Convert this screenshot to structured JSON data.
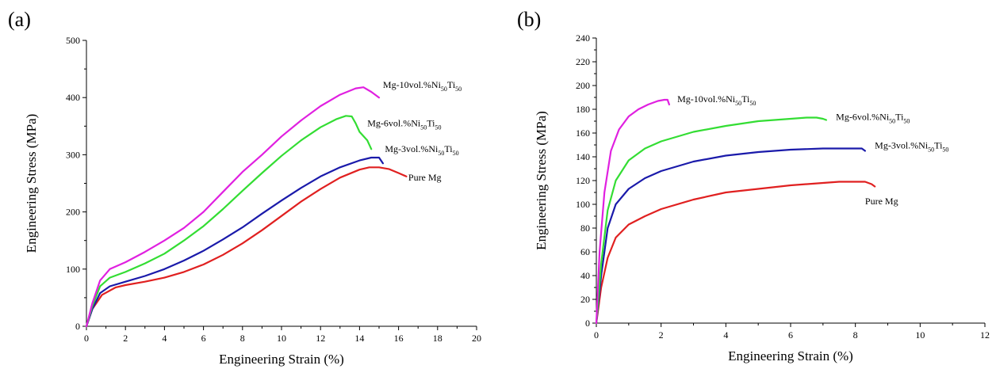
{
  "chart_data": [
    {
      "type": "line",
      "panel_label": "(a)",
      "xlabel": "Engineering Strain (%)",
      "ylabel": "Engineering Stress (MPa)",
      "xlim": [
        0,
        20
      ],
      "ylim": [
        0,
        500
      ],
      "xticks": [
        0,
        2,
        4,
        6,
        8,
        10,
        12,
        14,
        16,
        18,
        20
      ],
      "yticks": [
        0,
        100,
        200,
        300,
        400,
        500
      ],
      "series": [
        {
          "name": "Pure Mg",
          "label_main": "Pure Mg",
          "label_sub": "",
          "color": "#e02020",
          "x": [
            0,
            0.3,
            0.8,
            1.5,
            2,
            3,
            4,
            5,
            6,
            7,
            8,
            9,
            10,
            11,
            12,
            13,
            14,
            14.5,
            15,
            15.5,
            16,
            16.4
          ],
          "y": [
            0,
            30,
            55,
            68,
            72,
            78,
            85,
            95,
            108,
            125,
            145,
            168,
            193,
            218,
            240,
            260,
            274,
            278,
            278,
            275,
            268,
            262
          ]
        },
        {
          "name": "Mg-3vol.%Ni50Ti50",
          "label_main": "Mg-3vol.%Ni",
          "label_sub": "50",
          "label_main2": "Ti",
          "label_sub2": "50",
          "color": "#1a1aaa",
          "x": [
            0,
            0.3,
            0.7,
            1.2,
            2,
            3,
            4,
            5,
            6,
            7,
            8,
            9,
            10,
            11,
            12,
            13,
            14,
            14.6,
            15,
            15.2
          ],
          "y": [
            0,
            30,
            58,
            70,
            78,
            88,
            100,
            115,
            132,
            152,
            173,
            197,
            220,
            242,
            262,
            278,
            290,
            295,
            295,
            285
          ]
        },
        {
          "name": "Mg-6vol.%Ni50Ti50",
          "label_main": "Mg-6vol.%Ni",
          "label_sub": "50",
          "label_main2": "Ti",
          "label_sub2": "50",
          "color": "#33dd33",
          "x": [
            0,
            0.3,
            0.7,
            1.2,
            2,
            3,
            4,
            5,
            6,
            7,
            8,
            9,
            10,
            11,
            12,
            12.8,
            13.3,
            13.6,
            13.8,
            14,
            14.4,
            14.6
          ],
          "y": [
            0,
            35,
            70,
            85,
            95,
            110,
            127,
            150,
            175,
            205,
            237,
            268,
            298,
            325,
            348,
            362,
            368,
            367,
            355,
            340,
            325,
            310
          ]
        },
        {
          "name": "Mg-10vol.%Ni50Ti50",
          "label_main": "Mg-10vol.%Ni",
          "label_sub": "50",
          "label_main2": "Ti",
          "label_sub2": "50",
          "color": "#e020e0",
          "x": [
            0,
            0.3,
            0.7,
            1.2,
            2,
            3,
            4,
            5,
            6,
            7,
            8,
            9,
            10,
            11,
            12,
            13,
            13.8,
            14.2,
            14.6,
            15
          ],
          "y": [
            0,
            40,
            80,
            100,
            112,
            130,
            150,
            172,
            200,
            235,
            270,
            300,
            332,
            360,
            385,
            405,
            416,
            418,
            410,
            400
          ]
        }
      ]
    },
    {
      "type": "line",
      "panel_label": "(b)",
      "xlabel": "Engineering Strain (%)",
      "ylabel": "Engineering Stress (MPa)",
      "xlim": [
        0,
        12
      ],
      "ylim": [
        0,
        240
      ],
      "xticks": [
        0,
        2,
        4,
        6,
        8,
        10,
        12
      ],
      "yticks": [
        0,
        20,
        40,
        60,
        80,
        100,
        120,
        140,
        160,
        180,
        200,
        220,
        240
      ],
      "series": [
        {
          "name": "Pure Mg",
          "label_main": "Pure Mg",
          "label_sub": "",
          "color": "#e02020",
          "x": [
            0,
            0.15,
            0.35,
            0.6,
            1,
            1.5,
            2,
            3,
            4,
            5,
            6,
            7,
            7.5,
            8,
            8.3,
            8.5,
            8.6
          ],
          "y": [
            0,
            30,
            55,
            72,
            83,
            90,
            96,
            104,
            110,
            113,
            116,
            118,
            119,
            119,
            119,
            117,
            115
          ]
        },
        {
          "name": "Mg-3vol.%Ni50Ti50",
          "label_main": "Mg-3vol.%Ni",
          "label_sub": "50",
          "label_main2": "Ti",
          "label_sub2": "50",
          "color": "#1a1aaa",
          "x": [
            0,
            0.15,
            0.35,
            0.6,
            1,
            1.5,
            2,
            3,
            4,
            5,
            6,
            7,
            7.5,
            8,
            8.2,
            8.3
          ],
          "y": [
            0,
            40,
            80,
            100,
            113,
            122,
            128,
            136,
            141,
            144,
            146,
            147,
            147,
            147,
            147,
            145
          ]
        },
        {
          "name": "Mg-6vol.%Ni50Ti50",
          "label_main": "Mg-6vol.%Ni",
          "label_sub": "50",
          "label_main2": "Ti",
          "label_sub2": "50",
          "color": "#33dd33",
          "x": [
            0,
            0.15,
            0.35,
            0.6,
            1,
            1.5,
            2,
            3,
            4,
            5,
            6,
            6.5,
            6.8,
            7,
            7.1
          ],
          "y": [
            0,
            50,
            95,
            120,
            137,
            147,
            153,
            161,
            166,
            170,
            172,
            173,
            173,
            172,
            171
          ]
        },
        {
          "name": "Mg-10vol.%Ni50Ti50",
          "label_main": "Mg-10vol.%Ni",
          "label_sub": "50",
          "label_main2": "Ti",
          "label_sub2": "50",
          "color": "#e020e0",
          "x": [
            0,
            0.1,
            0.25,
            0.45,
            0.7,
            1,
            1.3,
            1.6,
            1.9,
            2.1,
            2.2,
            2.25
          ],
          "y": [
            0,
            60,
            110,
            145,
            163,
            174,
            180,
            184,
            187,
            188,
            188,
            184
          ]
        }
      ]
    }
  ]
}
